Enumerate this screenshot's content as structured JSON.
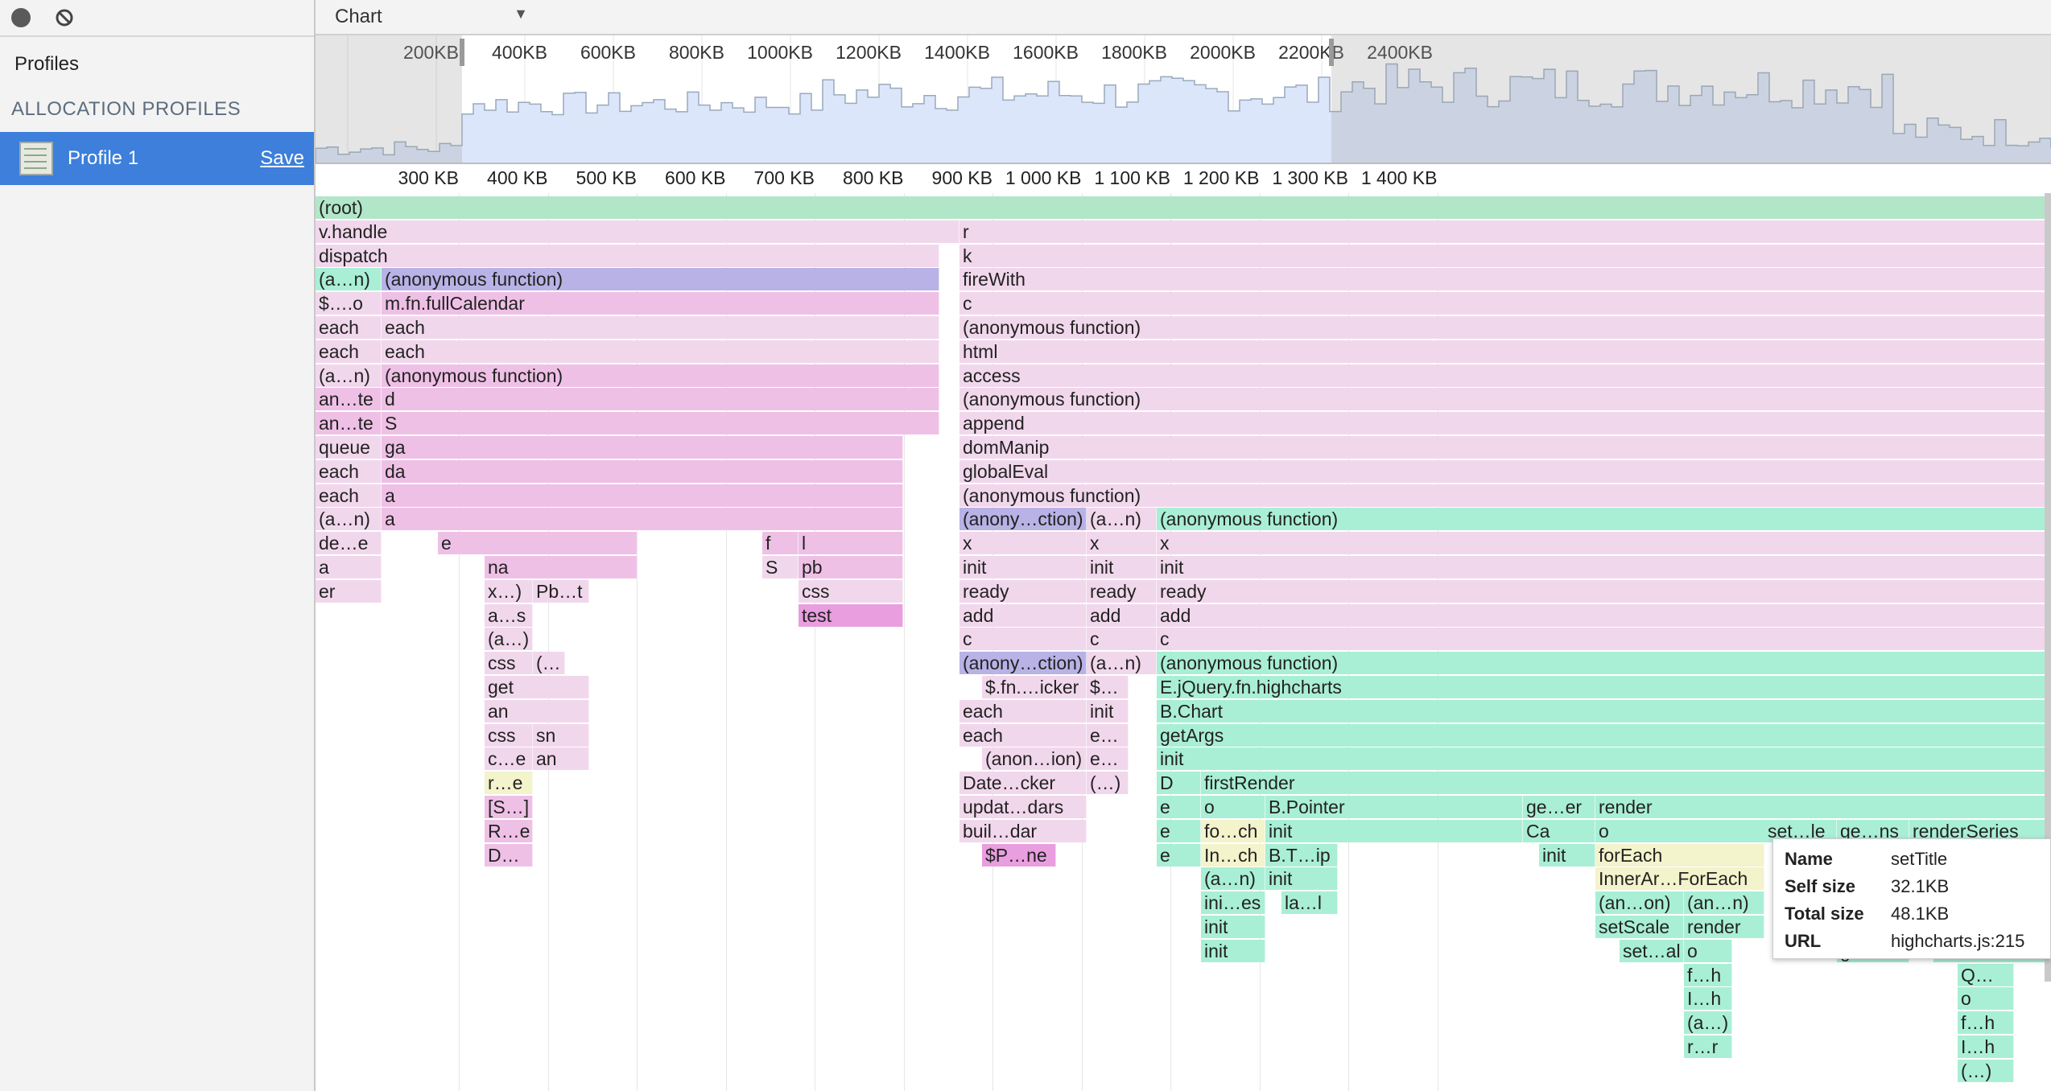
{
  "sidebar": {
    "record_icon": "record-icon",
    "clear_icon": "clear-icon",
    "profiles_label": "Profiles",
    "section_header": "ALLOCATION PROFILES",
    "profile": {
      "name": "Profile 1",
      "save_label": "Save",
      "icon": "heap-profile-icon"
    }
  },
  "toolbar": {
    "view_selector": "Chart"
  },
  "overview": {
    "ticks": [
      "200KB",
      "400KB",
      "600KB",
      "800KB",
      "1000KB",
      "1200KB",
      "1400KB",
      "1600KB",
      "1800KB",
      "2000KB",
      "2200KB",
      "2400KB"
    ]
  },
  "ruler": {
    "ticks": [
      "300 KB",
      "400 KB",
      "500 KB",
      "600 KB",
      "700 KB",
      "800 KB",
      "900 KB",
      "1 000 KB",
      "1 100 KB",
      "1 200 KB",
      "1 300 KB",
      "1 400 KB"
    ]
  },
  "colors": {
    "root": "#b2e6c9",
    "pink_light": "#f1d7ec",
    "pink_mid": "#efc0e6",
    "pink_strong": "#e99ee0",
    "teal": "#a9efd6",
    "purple": "#b9b2e6",
    "yellow": "#f3f3cc",
    "sidebar_selected": "#3d7fdb"
  },
  "flame": [
    {
      "row": 0,
      "start": 0,
      "end": 2156,
      "label": "(root)",
      "color": "root"
    },
    {
      "row": 1,
      "start": 0,
      "end": 800,
      "label": "v.handle",
      "color": "pink_light"
    },
    {
      "row": 1,
      "start": 800,
      "end": 2156,
      "label": "r",
      "color": "pink_light"
    },
    {
      "row": 2,
      "start": 0,
      "end": 775,
      "label": "dispatch",
      "color": "pink_light"
    },
    {
      "row": 2,
      "start": 800,
      "end": 2156,
      "label": "k",
      "color": "pink_light"
    },
    {
      "row": 3,
      "start": 0,
      "end": 82,
      "label": "(a…n)",
      "color": "teal"
    },
    {
      "row": 3,
      "start": 82,
      "end": 775,
      "label": "(anonymous function)",
      "color": "purple"
    },
    {
      "row": 3,
      "start": 800,
      "end": 2156,
      "label": "fireWith",
      "color": "pink_light"
    },
    {
      "row": 4,
      "start": 0,
      "end": 82,
      "label": "$….o",
      "color": "pink_light"
    },
    {
      "row": 4,
      "start": 82,
      "end": 775,
      "label": "m.fn.fullCalendar",
      "color": "pink_mid"
    },
    {
      "row": 4,
      "start": 800,
      "end": 2156,
      "label": "c",
      "color": "pink_light"
    },
    {
      "row": 5,
      "start": 0,
      "end": 82,
      "label": "each",
      "color": "pink_light"
    },
    {
      "row": 5,
      "start": 82,
      "end": 775,
      "label": "each",
      "color": "pink_light"
    },
    {
      "row": 5,
      "start": 800,
      "end": 2156,
      "label": "(anonymous function)",
      "color": "pink_light"
    },
    {
      "row": 6,
      "start": 0,
      "end": 82,
      "label": "each",
      "color": "pink_light"
    },
    {
      "row": 6,
      "start": 82,
      "end": 775,
      "label": "each",
      "color": "pink_light"
    },
    {
      "row": 6,
      "start": 800,
      "end": 2156,
      "label": "html",
      "color": "pink_light"
    },
    {
      "row": 7,
      "start": 0,
      "end": 82,
      "label": "(a…n)",
      "color": "pink_light"
    },
    {
      "row": 7,
      "start": 82,
      "end": 775,
      "label": "(anonymous function)",
      "color": "pink_mid"
    },
    {
      "row": 7,
      "start": 800,
      "end": 2156,
      "label": "access",
      "color": "pink_light"
    },
    {
      "row": 8,
      "start": 0,
      "end": 82,
      "label": "an…te",
      "color": "pink_mid"
    },
    {
      "row": 8,
      "start": 82,
      "end": 775,
      "label": "d",
      "color": "pink_mid"
    },
    {
      "row": 8,
      "start": 800,
      "end": 2156,
      "label": "(anonymous function)",
      "color": "pink_light"
    },
    {
      "row": 9,
      "start": 0,
      "end": 82,
      "label": "an…te",
      "color": "pink_mid"
    },
    {
      "row": 9,
      "start": 82,
      "end": 775,
      "label": "S",
      "color": "pink_mid"
    },
    {
      "row": 9,
      "start": 800,
      "end": 2156,
      "label": "append",
      "color": "pink_light"
    },
    {
      "row": 10,
      "start": 0,
      "end": 82,
      "label": "queue",
      "color": "pink_light"
    },
    {
      "row": 10,
      "start": 82,
      "end": 730,
      "label": "ga",
      "color": "pink_mid"
    },
    {
      "row": 10,
      "start": 800,
      "end": 2156,
      "label": "domManip",
      "color": "pink_light"
    },
    {
      "row": 11,
      "start": 0,
      "end": 82,
      "label": "each",
      "color": "pink_light"
    },
    {
      "row": 11,
      "start": 82,
      "end": 730,
      "label": "da",
      "color": "pink_mid"
    },
    {
      "row": 11,
      "start": 800,
      "end": 2156,
      "label": "globalEval",
      "color": "pink_light"
    },
    {
      "row": 12,
      "start": 0,
      "end": 82,
      "label": "each",
      "color": "pink_light"
    },
    {
      "row": 12,
      "start": 82,
      "end": 730,
      "label": "a",
      "color": "pink_mid"
    },
    {
      "row": 12,
      "start": 800,
      "end": 2156,
      "label": "(anonymous function)",
      "color": "pink_light"
    },
    {
      "row": 13,
      "start": 0,
      "end": 82,
      "label": "(a…n)",
      "color": "pink_light"
    },
    {
      "row": 13,
      "start": 82,
      "end": 730,
      "label": "a",
      "color": "pink_mid"
    },
    {
      "row": 13,
      "start": 800,
      "end": 958,
      "label": "(anony…ction)",
      "color": "purple"
    },
    {
      "row": 13,
      "start": 958,
      "end": 1045,
      "label": "(a…n)",
      "color": "pink_light"
    },
    {
      "row": 13,
      "start": 1045,
      "end": 2156,
      "label": "(anonymous function)",
      "color": "teal"
    },
    {
      "row": 14,
      "start": 0,
      "end": 82,
      "label": "de…e",
      "color": "pink_light"
    },
    {
      "row": 14,
      "start": 152,
      "end": 400,
      "label": "e",
      "color": "pink_mid"
    },
    {
      "row": 14,
      "start": 555,
      "end": 600,
      "label": "f",
      "color": "pink_mid"
    },
    {
      "row": 14,
      "start": 600,
      "end": 730,
      "label": "l",
      "color": "pink_mid"
    },
    {
      "row": 14,
      "start": 800,
      "end": 958,
      "label": "x",
      "color": "pink_light"
    },
    {
      "row": 14,
      "start": 958,
      "end": 1045,
      "label": "x",
      "color": "pink_light"
    },
    {
      "row": 14,
      "start": 1045,
      "end": 2156,
      "label": "x",
      "color": "pink_light"
    },
    {
      "row": 15,
      "start": 0,
      "end": 82,
      "label": "a",
      "color": "pink_light"
    },
    {
      "row": 15,
      "start": 210,
      "end": 400,
      "label": "na",
      "color": "pink_mid"
    },
    {
      "row": 15,
      "start": 555,
      "end": 600,
      "label": "S",
      "color": "pink_light"
    },
    {
      "row": 15,
      "start": 600,
      "end": 730,
      "label": "pb",
      "color": "pink_mid"
    },
    {
      "row": 15,
      "start": 800,
      "end": 958,
      "label": "init",
      "color": "pink_light"
    },
    {
      "row": 15,
      "start": 958,
      "end": 1045,
      "label": "init",
      "color": "pink_light"
    },
    {
      "row": 15,
      "start": 1045,
      "end": 2156,
      "label": "init",
      "color": "pink_light"
    },
    {
      "row": 16,
      "start": 0,
      "end": 82,
      "label": "er",
      "color": "pink_light"
    },
    {
      "row": 16,
      "start": 210,
      "end": 270,
      "label": "x…)",
      "color": "pink_light"
    },
    {
      "row": 16,
      "start": 270,
      "end": 340,
      "label": "Pb…t",
      "color": "pink_light"
    },
    {
      "row": 16,
      "start": 600,
      "end": 730,
      "label": "css",
      "color": "pink_light"
    },
    {
      "row": 16,
      "start": 800,
      "end": 958,
      "label": "ready",
      "color": "pink_light"
    },
    {
      "row": 16,
      "start": 958,
      "end": 1045,
      "label": "ready",
      "color": "pink_light"
    },
    {
      "row": 16,
      "start": 1045,
      "end": 2156,
      "label": "ready",
      "color": "pink_light"
    },
    {
      "row": 17,
      "start": 210,
      "end": 270,
      "label": "a…s",
      "color": "pink_light"
    },
    {
      "row": 17,
      "start": 600,
      "end": 730,
      "label": "test",
      "color": "pink_strong"
    },
    {
      "row": 17,
      "start": 800,
      "end": 958,
      "label": "add",
      "color": "pink_light"
    },
    {
      "row": 17,
      "start": 958,
      "end": 1045,
      "label": "add",
      "color": "pink_light"
    },
    {
      "row": 17,
      "start": 1045,
      "end": 2156,
      "label": "add",
      "color": "pink_light"
    },
    {
      "row": 18,
      "start": 210,
      "end": 270,
      "label": "(a…)",
      "color": "pink_light"
    },
    {
      "row": 18,
      "start": 800,
      "end": 958,
      "label": "c",
      "color": "pink_light"
    },
    {
      "row": 18,
      "start": 958,
      "end": 1045,
      "label": "c",
      "color": "pink_light"
    },
    {
      "row": 18,
      "start": 1045,
      "end": 2156,
      "label": "c",
      "color": "pink_light"
    },
    {
      "row": 19,
      "start": 210,
      "end": 270,
      "label": "css",
      "color": "pink_light"
    },
    {
      "row": 19,
      "start": 270,
      "end": 310,
      "label": "(…",
      "color": "pink_light"
    },
    {
      "row": 19,
      "start": 800,
      "end": 958,
      "label": "(anony…ction)",
      "color": "purple"
    },
    {
      "row": 19,
      "start": 958,
      "end": 1045,
      "label": "(a…n)",
      "color": "pink_light"
    },
    {
      "row": 19,
      "start": 1045,
      "end": 2156,
      "label": "(anonymous function)",
      "color": "teal"
    },
    {
      "row": 20,
      "start": 210,
      "end": 340,
      "label": "get",
      "color": "pink_light"
    },
    {
      "row": 20,
      "start": 828,
      "end": 958,
      "label": "$.fn.…icker",
      "color": "pink_light"
    },
    {
      "row": 20,
      "start": 958,
      "end": 1010,
      "label": "$…",
      "color": "pink_light"
    },
    {
      "row": 20,
      "start": 1045,
      "end": 2156,
      "label": "E.jQuery.fn.highcharts",
      "color": "teal"
    },
    {
      "row": 21,
      "start": 210,
      "end": 340,
      "label": "an",
      "color": "pink_light"
    },
    {
      "row": 21,
      "start": 800,
      "end": 958,
      "label": "each",
      "color": "pink_light"
    },
    {
      "row": 21,
      "start": 958,
      "end": 1010,
      "label": "init",
      "color": "pink_light"
    },
    {
      "row": 21,
      "start": 1045,
      "end": 2156,
      "label": "B.Chart",
      "color": "teal"
    },
    {
      "row": 22,
      "start": 210,
      "end": 270,
      "label": "css",
      "color": "pink_light"
    },
    {
      "row": 22,
      "start": 270,
      "end": 340,
      "label": "sn",
      "color": "pink_light"
    },
    {
      "row": 22,
      "start": 800,
      "end": 958,
      "label": "each",
      "color": "pink_light"
    },
    {
      "row": 22,
      "start": 958,
      "end": 1010,
      "label": "e…",
      "color": "pink_light"
    },
    {
      "row": 22,
      "start": 1045,
      "end": 2156,
      "label": "getArgs",
      "color": "teal"
    },
    {
      "row": 23,
      "start": 210,
      "end": 270,
      "label": "c…e",
      "color": "pink_light"
    },
    {
      "row": 23,
      "start": 270,
      "end": 340,
      "label": "an",
      "color": "pink_light"
    },
    {
      "row": 23,
      "start": 828,
      "end": 958,
      "label": "(anon…ion)",
      "color": "pink_light"
    },
    {
      "row": 23,
      "start": 958,
      "end": 1010,
      "label": "e…",
      "color": "pink_light"
    },
    {
      "row": 23,
      "start": 1045,
      "end": 2156,
      "label": "init",
      "color": "teal"
    },
    {
      "row": 24,
      "start": 210,
      "end": 270,
      "label": "r…e",
      "color": "yellow"
    },
    {
      "row": 24,
      "start": 800,
      "end": 958,
      "label": "Date…cker",
      "color": "pink_light"
    },
    {
      "row": 24,
      "start": 958,
      "end": 1010,
      "label": "(…)",
      "color": "pink_light"
    },
    {
      "row": 24,
      "start": 1045,
      "end": 1100,
      "label": "D",
      "color": "teal"
    },
    {
      "row": 24,
      "start": 1100,
      "end": 2156,
      "label": "firstRender",
      "color": "teal"
    },
    {
      "row": 25,
      "start": 210,
      "end": 270,
      "label": "[S…]",
      "color": "pink_mid"
    },
    {
      "row": 25,
      "start": 800,
      "end": 958,
      "label": "updat…dars",
      "color": "pink_light"
    },
    {
      "row": 25,
      "start": 1045,
      "end": 1100,
      "label": "e",
      "color": "teal"
    },
    {
      "row": 25,
      "start": 1100,
      "end": 1180,
      "label": "o",
      "color": "teal"
    },
    {
      "row": 25,
      "start": 1180,
      "end": 1500,
      "label": "B.Pointer",
      "color": "teal"
    },
    {
      "row": 25,
      "start": 1500,
      "end": 1590,
      "label": "ge…er",
      "color": "teal"
    },
    {
      "row": 25,
      "start": 1590,
      "end": 2156,
      "label": "render",
      "color": "teal"
    },
    {
      "row": 26,
      "start": 210,
      "end": 270,
      "label": "R…e",
      "color": "pink_mid"
    },
    {
      "row": 26,
      "start": 800,
      "end": 958,
      "label": "buil…dar",
      "color": "pink_light"
    },
    {
      "row": 26,
      "start": 1045,
      "end": 1100,
      "label": "e",
      "color": "teal"
    },
    {
      "row": 26,
      "start": 1100,
      "end": 1180,
      "label": "fo…ch",
      "color": "yellow"
    },
    {
      "row": 26,
      "start": 1180,
      "end": 1500,
      "label": "init",
      "color": "teal"
    },
    {
      "row": 26,
      "start": 1500,
      "end": 1590,
      "label": "Ca",
      "color": "teal"
    },
    {
      "row": 26,
      "start": 1590,
      "end": 2156,
      "label": "o",
      "color": "teal"
    },
    {
      "row": 27,
      "start": 210,
      "end": 270,
      "label": "D…",
      "color": "pink_mid"
    },
    {
      "row": 27,
      "start": 828,
      "end": 920,
      "label": "$P…ne",
      "color": "pink_strong"
    },
    {
      "row": 27,
      "start": 1045,
      "end": 1100,
      "label": "e",
      "color": "teal"
    },
    {
      "row": 27,
      "start": 1100,
      "end": 1180,
      "label": "In…ch",
      "color": "yellow"
    },
    {
      "row": 27,
      "start": 1180,
      "end": 1270,
      "label": "B.T…ip",
      "color": "teal"
    },
    {
      "row": 27,
      "start": 1520,
      "end": 1590,
      "label": "init",
      "color": "teal"
    },
    {
      "row": 27,
      "start": 1590,
      "end": 1800,
      "label": "forEach",
      "color": "yellow"
    },
    {
      "row": 28,
      "start": 1100,
      "end": 1180,
      "label": "(a…n)",
      "color": "teal"
    },
    {
      "row": 28,
      "start": 1180,
      "end": 1270,
      "label": "init",
      "color": "teal"
    },
    {
      "row": 28,
      "start": 1590,
      "end": 1800,
      "label": "InnerAr…ForEach",
      "color": "yellow"
    },
    {
      "row": 29,
      "start": 1100,
      "end": 1180,
      "label": "ini…es",
      "color": "teal"
    },
    {
      "row": 29,
      "start": 1200,
      "end": 1270,
      "label": "la…l",
      "color": "teal"
    },
    {
      "row": 29,
      "start": 1590,
      "end": 1700,
      "label": "(an…on)",
      "color": "teal"
    },
    {
      "row": 29,
      "start": 1700,
      "end": 1800,
      "label": "(an…n)",
      "color": "teal"
    },
    {
      "row": 30,
      "start": 1100,
      "end": 1180,
      "label": "init",
      "color": "teal"
    },
    {
      "row": 30,
      "start": 1590,
      "end": 1700,
      "label": "setScale",
      "color": "teal"
    },
    {
      "row": 30,
      "start": 1700,
      "end": 1800,
      "label": "render",
      "color": "teal"
    },
    {
      "row": 31,
      "start": 1100,
      "end": 1180,
      "label": "init",
      "color": "teal"
    },
    {
      "row": 31,
      "start": 1620,
      "end": 1700,
      "label": "set…al",
      "color": "teal"
    },
    {
      "row": 31,
      "start": 1700,
      "end": 1760,
      "label": "o",
      "color": "teal"
    },
    {
      "row": 32,
      "start": 1700,
      "end": 1760,
      "label": "f…h",
      "color": "teal"
    },
    {
      "row": 33,
      "start": 1700,
      "end": 1760,
      "label": "I…h",
      "color": "teal"
    },
    {
      "row": 34,
      "start": 1700,
      "end": 1760,
      "label": "(a…)",
      "color": "teal"
    },
    {
      "row": 35,
      "start": 1700,
      "end": 1760,
      "label": "r…r",
      "color": "teal"
    },
    {
      "row": 26,
      "start": 1800,
      "end": 1890,
      "label": "set…le",
      "color": "teal"
    },
    {
      "row": 26,
      "start": 1890,
      "end": 1980,
      "label": "ge…ns",
      "color": "teal"
    },
    {
      "row": 26,
      "start": 1980,
      "end": 2156,
      "label": "renderSeries",
      "color": "teal"
    },
    {
      "row": 31,
      "start": 1890,
      "end": 1980,
      "label": "ge…et",
      "color": "teal"
    },
    {
      "row": 31,
      "start": 2010,
      "end": 2156,
      "label": "render",
      "color": "teal"
    },
    {
      "row": 32,
      "start": 2040,
      "end": 2110,
      "label": "Q…",
      "color": "teal"
    },
    {
      "row": 33,
      "start": 2040,
      "end": 2110,
      "label": "o",
      "color": "teal"
    },
    {
      "row": 34,
      "start": 2040,
      "end": 2110,
      "label": "f…h",
      "color": "teal"
    },
    {
      "row": 35,
      "start": 2040,
      "end": 2110,
      "label": "I…h",
      "color": "teal"
    },
    {
      "row": 36,
      "start": 2040,
      "end": 2110,
      "label": "(…)",
      "color": "teal"
    }
  ],
  "tooltip": {
    "name_key": "Name",
    "name_val": "setTitle",
    "self_key": "Self size",
    "self_val": "32.1KB",
    "total_key": "Total size",
    "total_val": "48.1KB",
    "url_key": "URL",
    "url_val": "highcharts.js:215"
  }
}
